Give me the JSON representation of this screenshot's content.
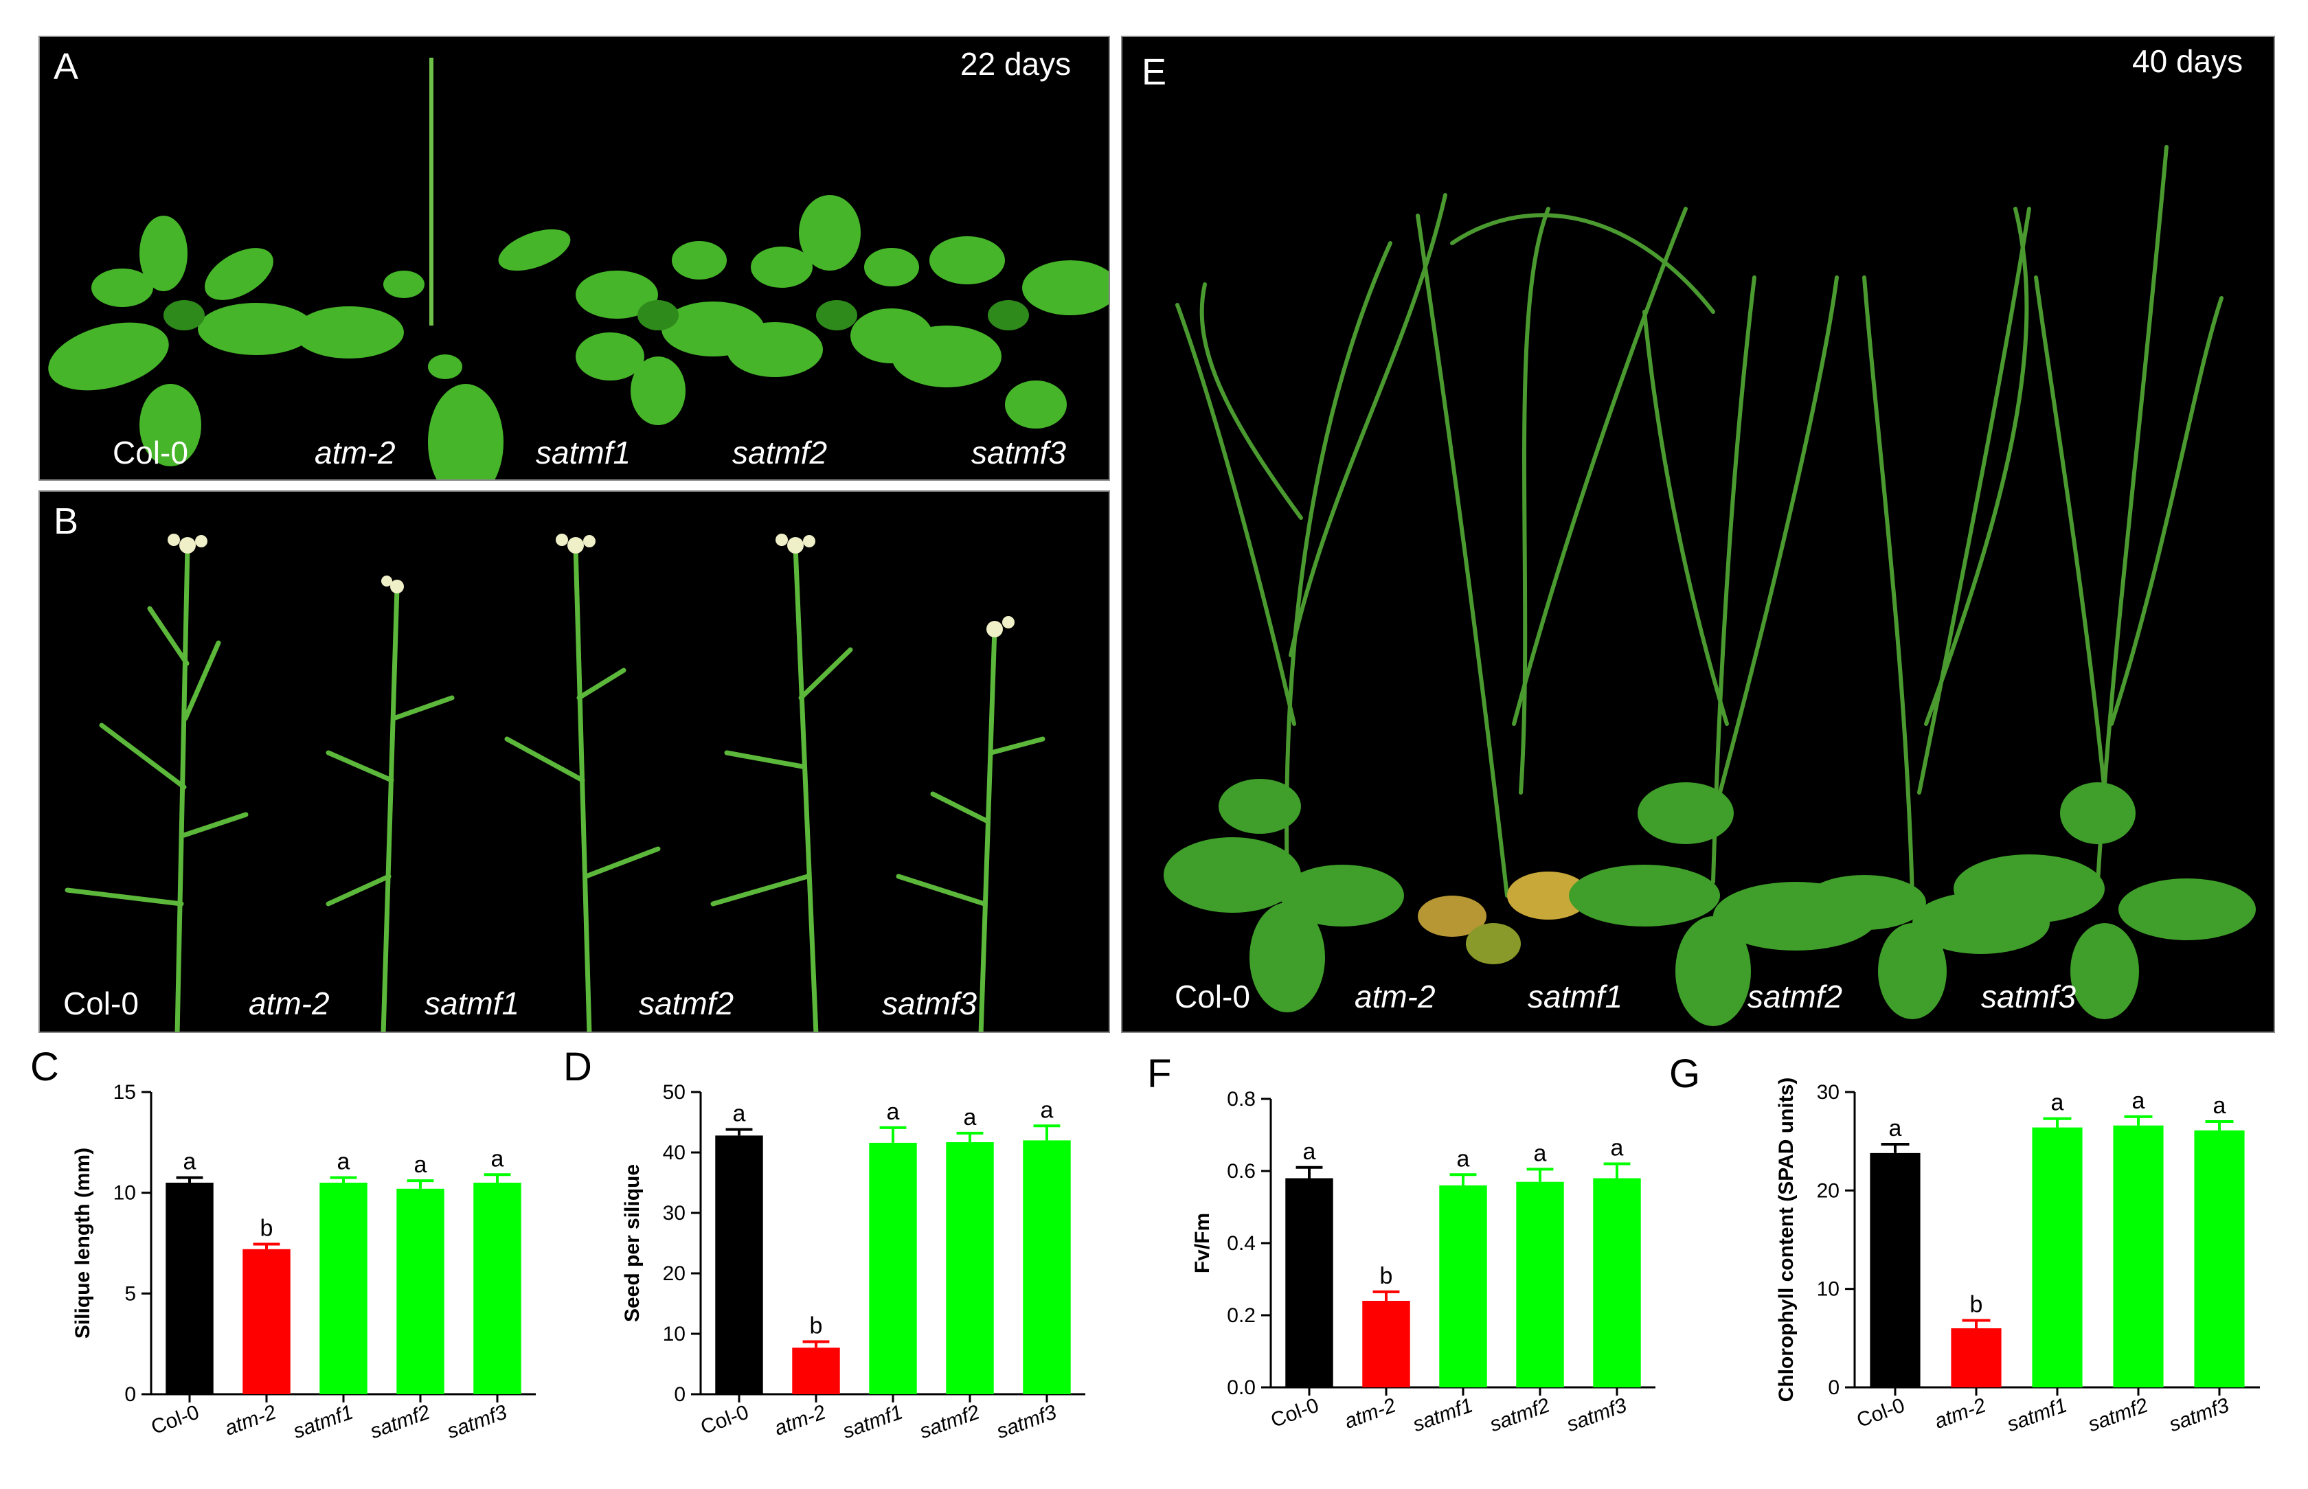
{
  "photos": [
    {
      "letter": "A",
      "days": "22 days",
      "labels": [
        "Col-0",
        "atm-2",
        "satmf1",
        "satmf2",
        "satmf3"
      ]
    },
    {
      "letter": "B",
      "days": "",
      "labels": [
        "Col-0",
        "atm-2",
        "satmf1",
        "satmf2",
        "satmf3"
      ]
    },
    {
      "letter": "E",
      "days": "40 days",
      "labels": [
        "Col-0",
        "atm-2",
        "satmf1",
        "satmf2",
        "satmf3"
      ]
    }
  ],
  "colors": {
    "col0": "#000000",
    "atm2": "#ff0000",
    "satmf": "#00ff00",
    "photo_bg": "#000000",
    "plant": "#3fa81f"
  },
  "chart_data": [
    {
      "letter": "C",
      "type": "bar",
      "categories": [
        "Col-0",
        "atm-2",
        "satmf1",
        "satmf2",
        "satmf3"
      ],
      "values": [
        10.5,
        7.2,
        10.5,
        10.2,
        10.5
      ],
      "errors": [
        0.25,
        0.25,
        0.25,
        0.4,
        0.4
      ],
      "letters": [
        "a",
        "b",
        "a",
        "a",
        "a"
      ],
      "ylabel": "Silique length (mm)",
      "ylim": [
        0,
        15
      ],
      "yticks": [
        0,
        5,
        10,
        15
      ],
      "colors": [
        "#000000",
        "#ff0000",
        "#00ff00",
        "#00ff00",
        "#00ff00"
      ]
    },
    {
      "letter": "D",
      "type": "bar",
      "categories": [
        "Col-0",
        "atm-2",
        "satmf1",
        "satmf2",
        "satmf3"
      ],
      "values": [
        42.8,
        7.7,
        41.6,
        41.7,
        42.0
      ],
      "errors": [
        1.0,
        1.0,
        2.5,
        1.5,
        2.4
      ],
      "letters": [
        "a",
        "b",
        "a",
        "a",
        "a"
      ],
      "ylabel": "Seed per silique",
      "ylim": [
        0,
        50
      ],
      "yticks": [
        0,
        10,
        20,
        30,
        40,
        50
      ],
      "colors": [
        "#000000",
        "#ff0000",
        "#00ff00",
        "#00ff00",
        "#00ff00"
      ]
    },
    {
      "letter": "F",
      "type": "bar",
      "categories": [
        "Col-0",
        "atm-2",
        "satmf1",
        "satmf2",
        "satmf3"
      ],
      "values": [
        0.58,
        0.24,
        0.56,
        0.57,
        0.58
      ],
      "errors": [
        0.03,
        0.025,
        0.03,
        0.035,
        0.04
      ],
      "letters": [
        "a",
        "b",
        "a",
        "a",
        "a"
      ],
      "ylabel": "Fv/Fm",
      "ylim": [
        0,
        0.8
      ],
      "yticks": [
        0.0,
        0.2,
        0.4,
        0.6,
        0.8
      ],
      "ytick_labels": [
        "0.0",
        "0.2",
        "0.4",
        "0.6",
        "0.8"
      ],
      "colors": [
        "#000000",
        "#ff0000",
        "#00ff00",
        "#00ff00",
        "#00ff00"
      ]
    },
    {
      "letter": "G",
      "type": "bar",
      "categories": [
        "Col-0",
        "atm-2",
        "satmf1",
        "satmf2",
        "satmf3"
      ],
      "values": [
        23.8,
        6.0,
        26.4,
        26.6,
        26.1
      ],
      "errors": [
        0.9,
        0.8,
        0.9,
        0.9,
        0.9
      ],
      "letters": [
        "a",
        "b",
        "a",
        "a",
        "a"
      ],
      "ylabel": "Chlorophyll content (SPAD units)",
      "ylim": [
        0,
        30
      ],
      "yticks": [
        0,
        10,
        20,
        30
      ],
      "colors": [
        "#000000",
        "#ff0000",
        "#00ff00",
        "#00ff00",
        "#00ff00"
      ]
    }
  ]
}
